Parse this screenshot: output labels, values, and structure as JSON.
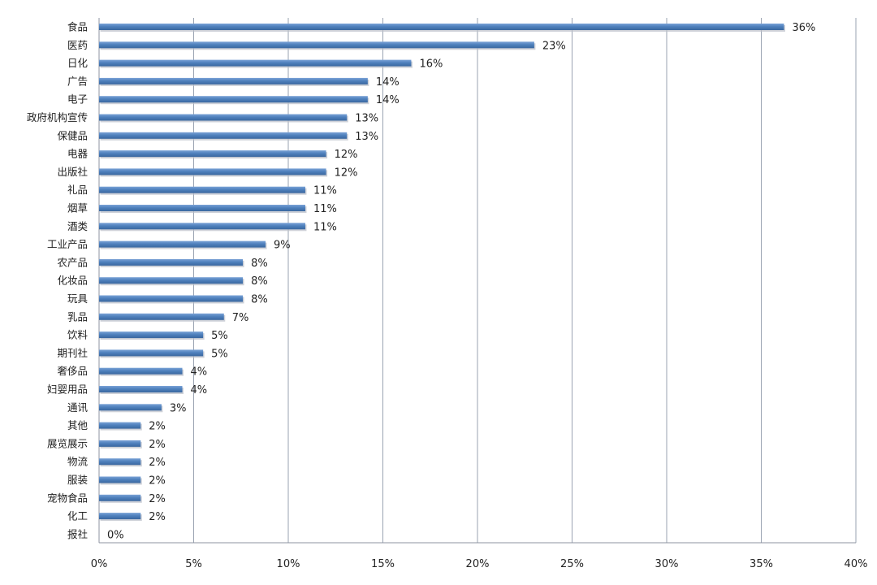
{
  "chart_data": {
    "type": "bar",
    "orientation": "horizontal",
    "title": "",
    "xlabel": "",
    "ylabel": "",
    "categories": [
      "食品",
      "医药",
      "日化",
      "广告",
      "电子",
      "政府机构宣传",
      "保健品",
      "电器",
      "出版社",
      "礼品",
      "烟草",
      "酒类",
      "工业产品",
      "农产品",
      "化妆品",
      "玩具",
      "乳品",
      "饮料",
      "期刊社",
      "奢侈品",
      "妇婴用品",
      "通讯",
      "其他",
      "展览展示",
      "物流",
      "服装",
      "宠物食品",
      "化工",
      "报社"
    ],
    "values": [
      36.2,
      23.0,
      16.5,
      14.2,
      14.2,
      13.1,
      13.1,
      12.0,
      12.0,
      10.9,
      10.9,
      10.9,
      8.8,
      7.6,
      7.6,
      7.6,
      6.6,
      5.5,
      5.5,
      4.4,
      4.4,
      3.3,
      2.2,
      2.2,
      2.2,
      2.2,
      2.2,
      2.2,
      0
    ],
    "data_labels": [
      "36%",
      "23%",
      "16%",
      "14%",
      "14%",
      "13%",
      "13%",
      "12%",
      "12%",
      "11%",
      "11%",
      "11%",
      "9%",
      "8%",
      "8%",
      "8%",
      "7%",
      "5%",
      "5%",
      "4%",
      "4%",
      "3%",
      "2%",
      "2%",
      "2%",
      "2%",
      "2%",
      "2%",
      "0%"
    ],
    "x_ticks": [
      "0%",
      "5%",
      "10%",
      "15%",
      "20%",
      "25%",
      "30%",
      "35%",
      "40%"
    ],
    "xlim": [
      0,
      40
    ],
    "grid": "vertical",
    "legend": "none",
    "bar_color": "#4f81bd"
  }
}
